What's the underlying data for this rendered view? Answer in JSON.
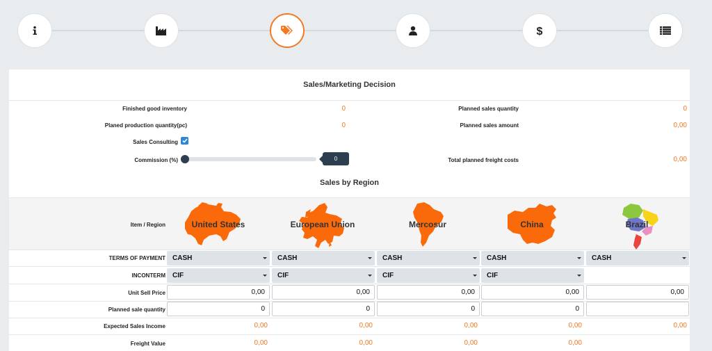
{
  "stepper": {
    "steps": [
      {
        "icon": "info-icon",
        "active": false
      },
      {
        "icon": "factory-icon",
        "active": false
      },
      {
        "icon": "tags-icon",
        "active": true
      },
      {
        "icon": "user-icon",
        "active": false
      },
      {
        "icon": "dollar-icon",
        "active": false
      },
      {
        "icon": "list-icon",
        "active": false
      }
    ],
    "active_color": "#f47920"
  },
  "panel": {
    "title": "Sales/Marketing Decision",
    "finished_good_inventory": {
      "label": "Finished good inventory",
      "value": "0"
    },
    "planned_production_quantity": {
      "label": "Planed production quantity(pc)",
      "value": "0"
    },
    "planned_sales_quantity": {
      "label": "Planned sales quantity",
      "value": "0"
    },
    "planned_sales_amount": {
      "label": "Planned sales amount",
      "value": "0,00"
    },
    "sales_consulting": {
      "label": "Sales Consulting",
      "checked": true
    },
    "commission": {
      "label": "Commission (%)",
      "value": "0"
    },
    "total_planned_freight_costs": {
      "label": "Total planned freight costs",
      "value": "0,00"
    }
  },
  "sales_by_region": {
    "title": "Sales by Region",
    "header_label": "Item / Region",
    "regions": [
      {
        "name": "United States"
      },
      {
        "name": "European Union"
      },
      {
        "name": "Mercosur"
      },
      {
        "name": "China"
      },
      {
        "name": "Brazil"
      }
    ],
    "rows": {
      "terms_of_payment": {
        "label": "TERMS OF PAYMENT",
        "values": [
          "CASH",
          "CASH",
          "CASH",
          "CASH",
          "CASH"
        ]
      },
      "incoterm": {
        "label": "INCONTERM",
        "values": [
          "CIF",
          "CIF",
          "CIF",
          "CIF"
        ]
      },
      "unit_sell_price": {
        "label": "Unit Sell Price",
        "values": [
          "0,00",
          "0,00",
          "0,00",
          "0,00",
          "0,00"
        ]
      },
      "planned_sale_quantity": {
        "label": "Planned sale quantity",
        "values": [
          "0",
          "0",
          "0",
          "0",
          ""
        ]
      },
      "expected_sales_income": {
        "label": "Expected Sales Income",
        "values": [
          "0,00",
          "0,00",
          "0,00",
          "0,00",
          "0,00"
        ]
      },
      "freight_value": {
        "label": "Freight Value",
        "values": [
          "0,00",
          "0,00",
          "0,00",
          "0,00"
        ]
      }
    }
  },
  "colors": {
    "accent": "#f47920",
    "map_orange": "#fa6a0a",
    "select_bg": "#dee3e8",
    "slider": "#2c3e50",
    "checkbox": "#2f86d6"
  }
}
